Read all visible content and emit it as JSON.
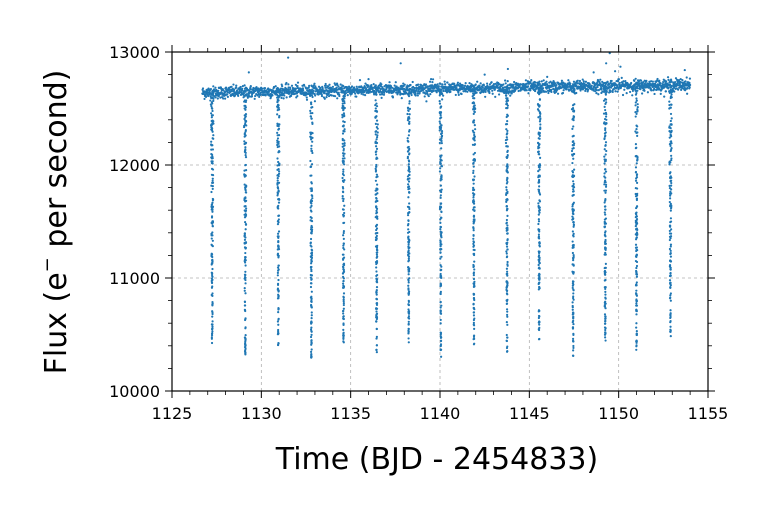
{
  "chart_data": {
    "type": "scatter",
    "title": "",
    "xlabel": "Time (BJD - 2454833)",
    "ylabel_main": "Flux (e",
    "ylabel_sup": "−",
    "ylabel_rest": " per second)",
    "xlim": [
      1125,
      1155
    ],
    "ylim": [
      10000,
      13000
    ],
    "xticks": [
      1125,
      1130,
      1135,
      1140,
      1145,
      1150,
      1155
    ],
    "xtick_labels": [
      "1125",
      "1130",
      "1135",
      "1140",
      "1145",
      "1150",
      "1155"
    ],
    "yticks": [
      10000,
      11000,
      12000,
      13000
    ],
    "ytick_labels": [
      "10000",
      "11000",
      "12000",
      "13000"
    ],
    "grid": true,
    "legend": "none",
    "marker_color": "#1f77b4",
    "series": [
      {
        "baseline": {
          "t_start": 1126.7,
          "t_end": 1154.0,
          "flux_start": 12640,
          "flux_end": 12710,
          "scatter": 45
        },
        "eclipses": [
          {
            "time": 1127.25,
            "min_flux": 10400
          },
          {
            "time": 1129.1,
            "min_flux": 10290
          },
          {
            "time": 1130.95,
            "min_flux": 10390
          },
          {
            "time": 1132.8,
            "min_flux": 10280
          },
          {
            "time": 1134.6,
            "min_flux": 10400
          },
          {
            "time": 1136.45,
            "min_flux": 10310
          },
          {
            "time": 1138.25,
            "min_flux": 10430
          },
          {
            "time": 1140.05,
            "min_flux": 10290
          },
          {
            "time": 1141.9,
            "min_flux": 10400
          },
          {
            "time": 1143.75,
            "min_flux": 10310
          },
          {
            "time": 1145.55,
            "min_flux": 10450
          },
          {
            "time": 1147.45,
            "min_flux": 10300
          },
          {
            "time": 1149.25,
            "min_flux": 10440
          },
          {
            "time": 1151.0,
            "min_flux": 10360
          },
          {
            "time": 1152.9,
            "min_flux": 10470
          }
        ],
        "outliers": [
          {
            "x": 1129.3,
            "y": 12820
          },
          {
            "x": 1131.5,
            "y": 12950
          },
          {
            "x": 1137.8,
            "y": 12900
          },
          {
            "x": 1136.0,
            "y": 12760
          },
          {
            "x": 1142.5,
            "y": 12800
          },
          {
            "x": 1143.8,
            "y": 12850
          },
          {
            "x": 1148.6,
            "y": 12820
          },
          {
            "x": 1149.5,
            "y": 12990
          },
          {
            "x": 1149.3,
            "y": 12900
          },
          {
            "x": 1149.8,
            "y": 12830
          },
          {
            "x": 1150.1,
            "y": 12870
          },
          {
            "x": 1153.7,
            "y": 12840
          },
          {
            "x": 1146.0,
            "y": 12780
          },
          {
            "x": 1139.5,
            "y": 12760
          }
        ]
      }
    ]
  }
}
